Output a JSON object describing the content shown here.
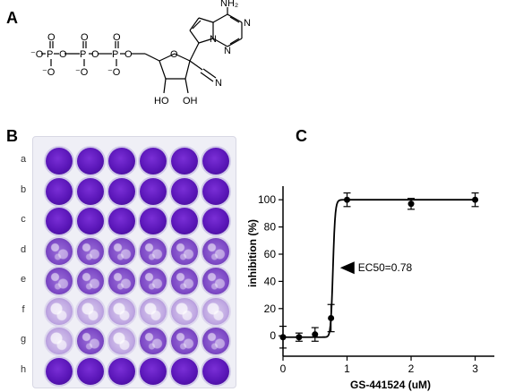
{
  "panels": {
    "a": "A",
    "b": "B",
    "c": "C"
  },
  "molecule": {
    "atoms": {
      "p": "P",
      "o": "O",
      "o_minus": "⁻O",
      "oh": "HO",
      "oh2": "OH",
      "nh2": "NH₂",
      "n": "N",
      "cn": "N"
    }
  },
  "plate": {
    "rows": [
      {
        "label": "a",
        "wells": [
          "full",
          "full",
          "full",
          "full",
          "full",
          "full"
        ]
      },
      {
        "label": "b",
        "wells": [
          "full",
          "full",
          "full",
          "full",
          "full",
          "full"
        ]
      },
      {
        "label": "c",
        "wells": [
          "full",
          "full",
          "full",
          "full",
          "full",
          "full"
        ]
      },
      {
        "label": "d",
        "wells": [
          "partial",
          "partial",
          "partial",
          "partial",
          "partial",
          "partial"
        ]
      },
      {
        "label": "e",
        "wells": [
          "partial",
          "partial",
          "partial",
          "partial",
          "partial",
          "partial"
        ]
      },
      {
        "label": "f",
        "wells": [
          "faint",
          "faint",
          "faint",
          "faint",
          "faint",
          "faint"
        ]
      },
      {
        "label": "g",
        "wells": [
          "faint",
          "partial",
          "faint",
          "partial",
          "partial",
          "partial"
        ]
      },
      {
        "label": "h",
        "wells": [
          "full",
          "full",
          "full",
          "full",
          "full",
          "full"
        ]
      }
    ]
  },
  "chart_data": {
    "type": "line",
    "title": "",
    "xlabel": "GS-441524 (uM)",
    "ylabel": "inhibition (%)",
    "xlim": [
      0,
      3.3
    ],
    "ylim": [
      -15,
      110
    ],
    "xticks": [
      0,
      1,
      2,
      3
    ],
    "yticks": [
      0,
      20,
      40,
      60,
      80,
      100
    ],
    "points": [
      {
        "x": 0.0,
        "y": -1,
        "err": 8
      },
      {
        "x": 0.25,
        "y": -1,
        "err": 3
      },
      {
        "x": 0.5,
        "y": 1,
        "err": 5
      },
      {
        "x": 0.75,
        "y": 13,
        "err": 10
      },
      {
        "x": 1.0,
        "y": 100,
        "err": 5
      },
      {
        "x": 2.0,
        "y": 97,
        "err": 4
      },
      {
        "x": 3.0,
        "y": 100,
        "err": 5
      }
    ],
    "fit": {
      "ec50": 0.78,
      "bottom": -1,
      "top": 100,
      "hill": 45
    },
    "annotation": {
      "text": "EC50=0.78",
      "x": 0.78,
      "y": 50
    }
  }
}
